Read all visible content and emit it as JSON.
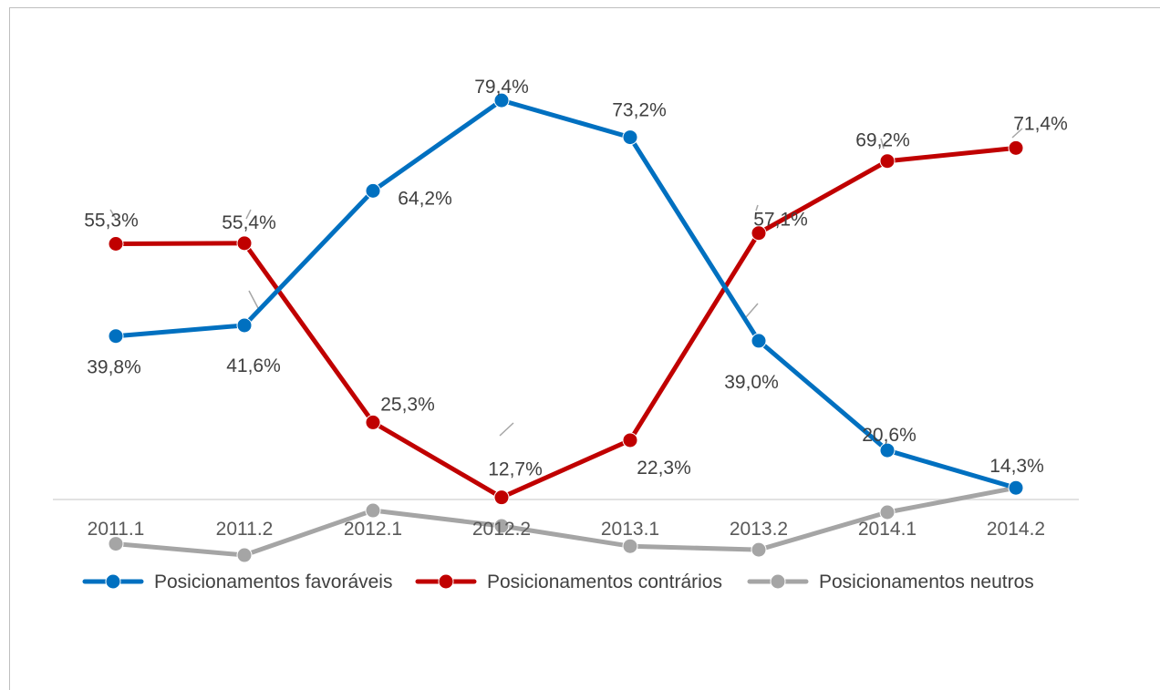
{
  "chart_data": {
    "type": "line",
    "title": "",
    "xlabel": "",
    "ylabel": "",
    "categories": [
      "2011.1",
      "2011.2",
      "2012.1",
      "2012.2",
      "2013.1",
      "2013.2",
      "2014.1",
      "2014.2"
    ],
    "ylim": [
      0,
      85
    ],
    "grid": false,
    "legend_position": "bottom",
    "series": [
      {
        "name": "Posicionamentos favoráveis",
        "color": "#0070C0",
        "values": [
          39.8,
          41.6,
          64.2,
          79.4,
          73.2,
          39.0,
          20.6,
          14.3
        ],
        "labels": [
          "39,8%",
          "41,6%",
          "64,2%",
          "79,4%",
          "73,2%",
          "39,0%",
          "20,6%",
          ""
        ]
      },
      {
        "name": "Posicionamentos contrários",
        "color": "#C00000",
        "values": [
          55.3,
          55.4,
          25.3,
          12.7,
          22.3,
          57.1,
          69.2,
          71.4
        ],
        "labels": [
          "55,3%",
          "55,4%",
          "25,3%",
          "12,7%",
          "22,3%",
          "57,1%",
          "69,2%",
          "71,4%"
        ]
      },
      {
        "name": "Posicionamentos neutros",
        "color": "#A5A5A5",
        "values": [
          4.9,
          3.0,
          10.5,
          7.9,
          4.5,
          3.9,
          10.2,
          14.3
        ],
        "labels": [
          "",
          "",
          "",
          "",
          "",
          "",
          "",
          "14,3%"
        ]
      }
    ]
  }
}
